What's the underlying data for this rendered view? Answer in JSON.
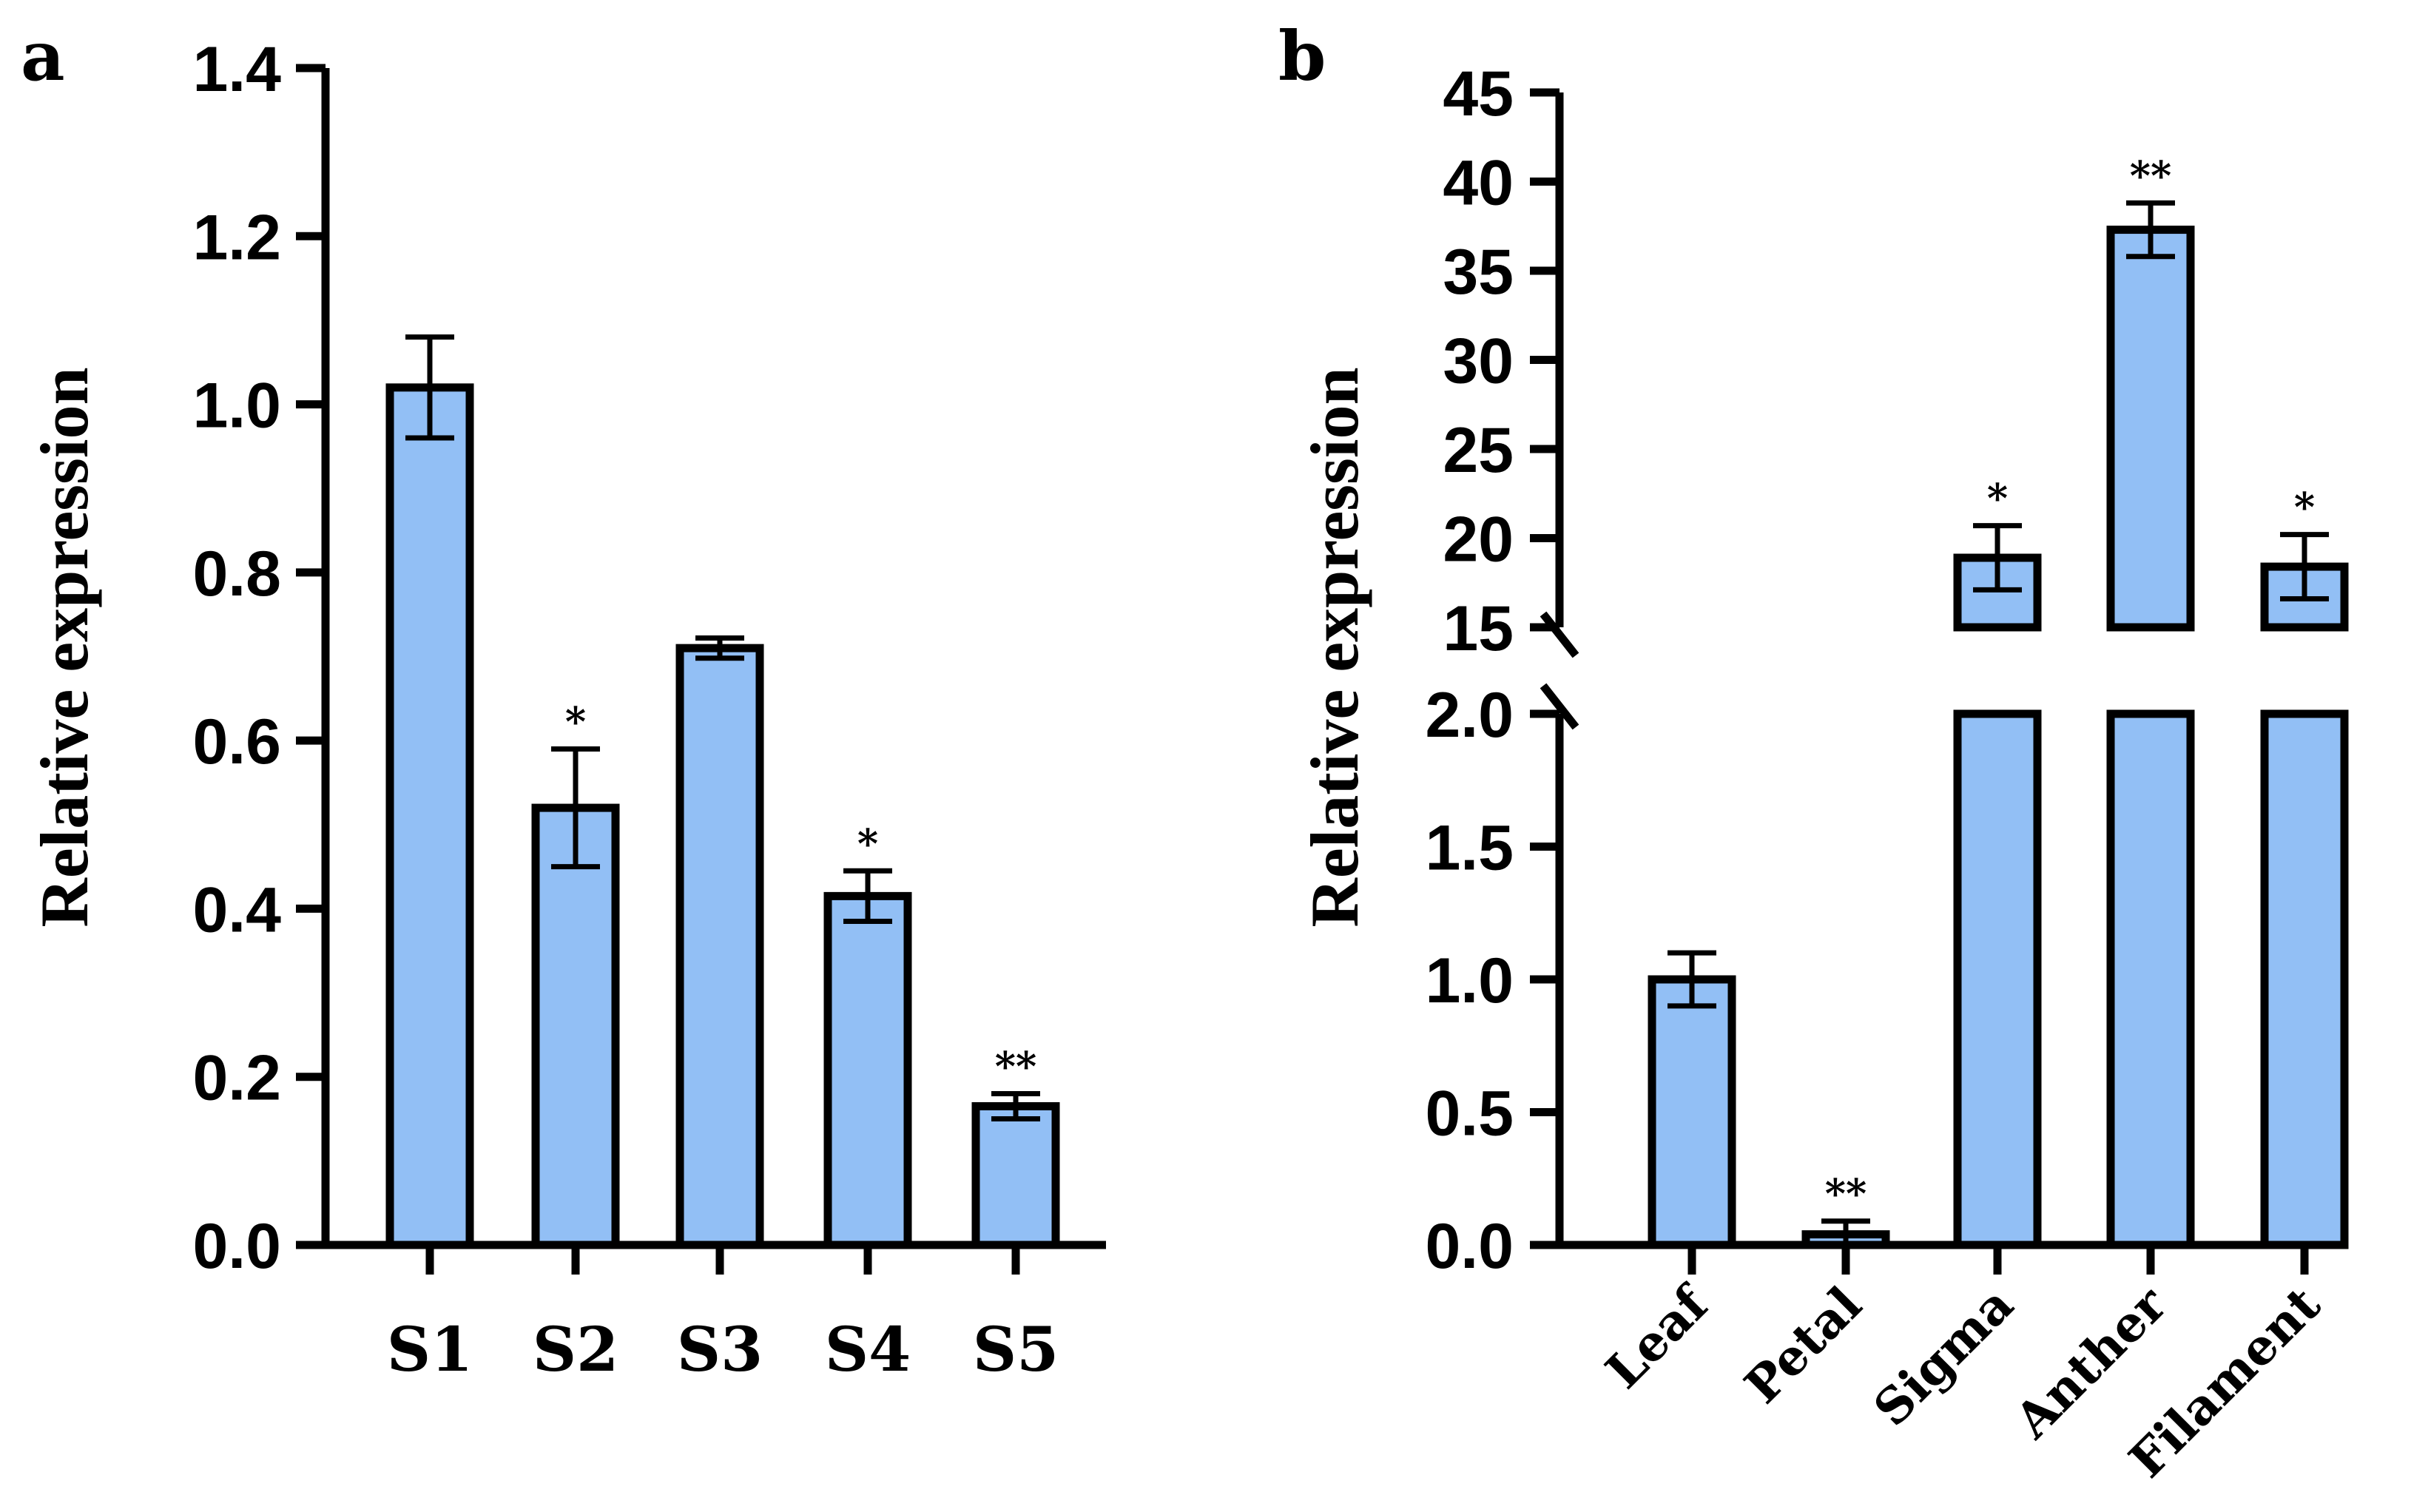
{
  "chart_data": [
    {
      "panel": "a",
      "type": "bar",
      "ylabel": "Relative expression",
      "ylim": [
        0,
        1.4
      ],
      "yticks": [
        "0.0",
        "0.2",
        "0.4",
        "0.6",
        "0.8",
        "1.0",
        "1.2",
        "1.4"
      ],
      "categories": [
        "S1",
        "S2",
        "S3",
        "S4",
        "S5"
      ],
      "values": [
        1.02,
        0.52,
        0.71,
        0.415,
        0.165
      ],
      "errors": [
        0.06,
        0.07,
        0.012,
        0.03,
        0.015
      ],
      "significance": [
        "",
        "*",
        "",
        "*",
        "**"
      ],
      "bar_color": "#92bff5"
    },
    {
      "panel": "b",
      "type": "bar",
      "ylabel": "Relative expression",
      "axis_break": {
        "lower_range": [
          0,
          2.0
        ],
        "upper_range": [
          15,
          45
        ]
      },
      "yticks_lower": [
        "0.0",
        "0.5",
        "1.0",
        "1.5",
        "2.0"
      ],
      "yticks_upper": [
        "15",
        "20",
        "25",
        "30",
        "35",
        "40",
        "45"
      ],
      "categories": [
        "Leaf",
        "Petal",
        "Sigma",
        "Anther",
        "Filament"
      ],
      "values": [
        1.0,
        0.04,
        18.9,
        37.3,
        18.4
      ],
      "errors": [
        0.1,
        0.05,
        1.8,
        1.5,
        1.8
      ],
      "significance": [
        "",
        "**",
        "*",
        "**",
        "*"
      ],
      "bar_color": "#92bff5"
    }
  ]
}
